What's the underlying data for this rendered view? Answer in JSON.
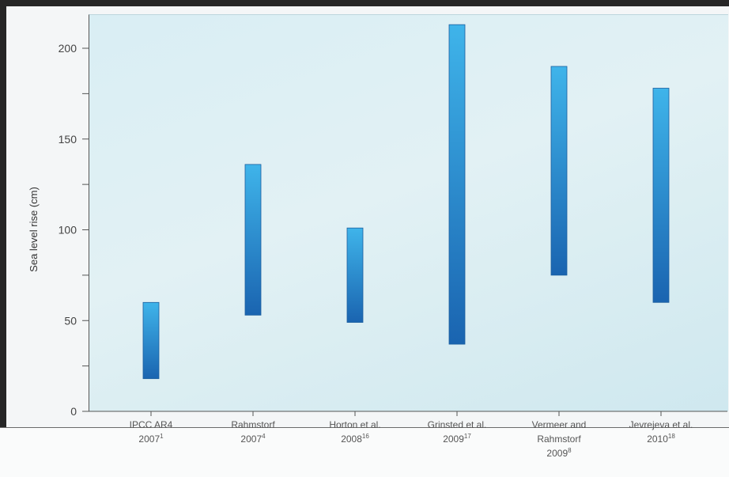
{
  "chart_data": {
    "type": "floating-bar",
    "ylabel": "Sea level rise  (cm)",
    "ylim": [
      0,
      220
    ],
    "yticks": [
      0,
      25,
      50,
      75,
      100,
      125,
      150,
      175,
      200
    ],
    "ytick_labels": [
      "0",
      "",
      "50",
      "",
      "100",
      "",
      "150",
      "",
      "200"
    ],
    "categories": [
      {
        "line1": "IPCC AR4",
        "line2": "2007",
        "sup": "1",
        "line3": ""
      },
      {
        "line1": "Rahmstorf",
        "line2": "2007",
        "sup": "4",
        "line3": ""
      },
      {
        "line1": "Horton et al.",
        "line2": "2008",
        "sup": "16",
        "line3": ""
      },
      {
        "line1": "Grinsted et al.",
        "line2": "2009",
        "sup": "17",
        "line3": ""
      },
      {
        "line1": "Vermeer and",
        "line2": "Rahmstorf",
        "sup": "8",
        "line3": "2009"
      },
      {
        "line1": "Jevrejeva et al.",
        "line2": "2010",
        "sup": "18",
        "line3": ""
      }
    ],
    "ranges": [
      {
        "low": 18,
        "high": 60
      },
      {
        "low": 53,
        "high": 136
      },
      {
        "low": 49,
        "high": 101
      },
      {
        "low": 37,
        "high": 213
      },
      {
        "low": 75,
        "high": 190
      },
      {
        "low": 60,
        "high": 178
      }
    ],
    "colors": {
      "bar_top": "#3fb4ea",
      "bar_bottom": "#1a64b0"
    }
  }
}
